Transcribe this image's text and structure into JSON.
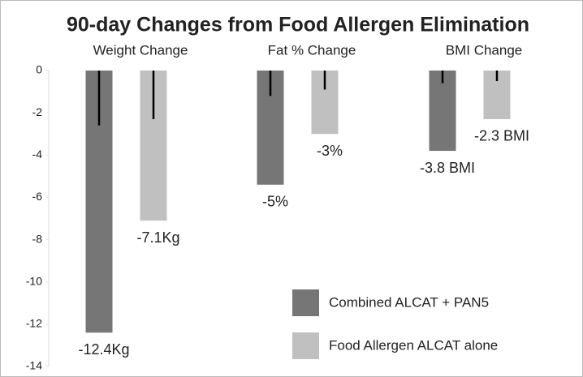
{
  "chart_data": {
    "type": "bar",
    "title": "90-day Changes from Food Allergen Elimination",
    "categories": [
      "Weight Change",
      "Fat % Change",
      "BMI Change"
    ],
    "series": [
      {
        "name": "Combined ALCAT + PAN5",
        "color": "#767676",
        "values": [
          -12.4,
          -5.4,
          -3.8
        ],
        "value_labels": [
          "-12.4Kg",
          "-5%",
          "-3.8 BMI"
        ],
        "errors": [
          2.6,
          1.2,
          0.6
        ]
      },
      {
        "name": "Food Allergen ALCAT alone",
        "color": "#c0c0c0",
        "values": [
          -7.1,
          -3,
          -2.3
        ],
        "value_labels": [
          "-7.1Kg",
          "-3%",
          "-2.3 BMI"
        ],
        "errors": [
          2.3,
          0.9,
          0.5
        ]
      }
    ],
    "ylim": [
      -14,
      0
    ],
    "yticks": [
      0,
      -2,
      -4,
      -6,
      -8,
      -10,
      -12,
      -14
    ],
    "legend": "lower right"
  }
}
